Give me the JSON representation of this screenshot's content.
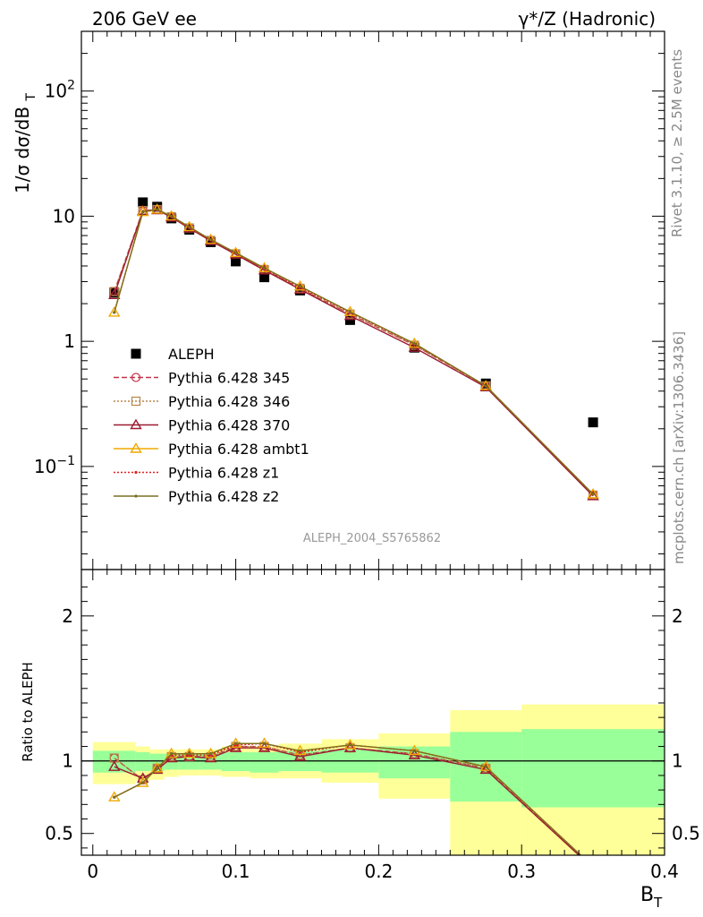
{
  "header": {
    "left": "206 GeV ee",
    "right": "γ*/Z (Hadronic)"
  },
  "side_labels": {
    "rivet": "Rivet 3.1.10, ≥ 2.5M events",
    "mcplots": "mcplots.cern.ch [arXiv:1306.3436]"
  },
  "watermark": "ALEPH_2004_S5765862",
  "chart_data": [
    {
      "type": "line",
      "panel": "main",
      "ylabel": "1/σ  dσ/dB_T",
      "yscale": "log",
      "ylim": [
        0.015,
        300
      ],
      "xlim": [
        -0.008,
        0.4
      ],
      "yticklabels": [
        "10^-1",
        "1",
        "10",
        "10^2"
      ],
      "grid": false,
      "legend_position": "middle-left",
      "x": [
        0.015,
        0.035,
        0.045,
        0.055,
        0.0675,
        0.0825,
        0.1,
        0.12,
        0.145,
        0.18,
        0.225,
        0.275,
        0.35
      ],
      "series": [
        {
          "name": "ALEPH",
          "style": "data",
          "color": "#000000",
          "values": [
            2.45,
            12.9,
            11.9,
            9.6,
            7.8,
            6.2,
            4.35,
            3.25,
            2.55,
            1.48,
            0.89,
            0.46,
            0.225
          ]
        },
        {
          "name": "Pythia 6.428 345",
          "color": "#c2344a",
          "marker": "circle",
          "dash": "6,3",
          "values": [
            2.5,
            11.1,
            11.3,
            9.9,
            8.05,
            6.4,
            5.0,
            3.75,
            2.65,
            1.65,
            0.93,
            0.44,
            0.059
          ]
        },
        {
          "name": "Pythia 6.428 346",
          "color": "#b8864b",
          "marker": "square",
          "dash": "2,2",
          "values": [
            2.5,
            11.1,
            11.3,
            9.9,
            8.05,
            6.4,
            5.0,
            3.75,
            2.65,
            1.65,
            0.93,
            0.44,
            0.059
          ]
        },
        {
          "name": "Pythia 6.428 370",
          "color": "#9b1b30",
          "marker": "triangle",
          "dash": "",
          "values": [
            2.35,
            11.0,
            11.2,
            9.8,
            8.0,
            6.35,
            4.95,
            3.7,
            2.6,
            1.6,
            0.89,
            0.43,
            0.058
          ]
        },
        {
          "name": "Pythia 6.428 ambt1",
          "color": "#f0a800",
          "marker": "triangle",
          "dash": "",
          "values": [
            1.7,
            10.8,
            11.3,
            10.0,
            8.2,
            6.5,
            5.1,
            3.85,
            2.75,
            1.72,
            0.96,
            0.44,
            0.06
          ]
        },
        {
          "name": "Pythia 6.428 z1",
          "color": "#e02020",
          "marker": "dot",
          "dash": "2,2",
          "values": [
            1.7,
            10.8,
            11.2,
            9.9,
            8.1,
            6.45,
            5.05,
            3.8,
            2.7,
            1.7,
            0.95,
            0.44,
            0.06
          ]
        },
        {
          "name": "Pythia 6.428 z2",
          "color": "#7a7020",
          "marker": "dot",
          "dash": "",
          "values": [
            1.7,
            10.8,
            11.3,
            10.0,
            8.2,
            6.5,
            5.1,
            3.85,
            2.75,
            1.72,
            0.96,
            0.44,
            0.06
          ]
        }
      ]
    },
    {
      "type": "line",
      "panel": "ratio",
      "ylabel": "Ratio to ALEPH",
      "xlabel": "B_T",
      "xlim": [
        -0.008,
        0.4
      ],
      "ylim": [
        0.35,
        2.32
      ],
      "xticklabels": [
        "0",
        "0.1",
        "0.2",
        "0.3",
        "0.4"
      ],
      "yticklabels": [
        "0.5",
        "1",
        "2"
      ],
      "bands": {
        "edges": [
          0.0,
          0.03,
          0.04,
          0.05,
          0.06,
          0.075,
          0.09,
          0.11,
          0.13,
          0.16,
          0.2,
          0.25,
          0.3,
          0.4
        ],
        "yellow_low": [
          0.84,
          0.86,
          0.87,
          0.89,
          0.9,
          0.9,
          0.89,
          0.88,
          0.88,
          0.85,
          0.74,
          0.35,
          0.35
        ],
        "yellow_high": [
          1.13,
          1.1,
          1.08,
          1.08,
          1.08,
          1.08,
          1.1,
          1.1,
          1.12,
          1.15,
          1.19,
          1.35,
          1.39
        ],
        "green_low": [
          0.92,
          0.93,
          0.93,
          0.94,
          0.94,
          0.94,
          0.93,
          0.92,
          0.93,
          0.92,
          0.88,
          0.72,
          0.68
        ],
        "green_high": [
          1.07,
          1.06,
          1.05,
          1.05,
          1.05,
          1.05,
          1.06,
          1.06,
          1.07,
          1.08,
          1.1,
          1.2,
          1.22
        ]
      },
      "series": [
        {
          "name": "Pythia 6.428 345",
          "values": [
            1.02,
            0.87,
            0.95,
            1.03,
            1.03,
            1.03,
            1.1,
            1.1,
            1.04,
            1.09,
            1.05,
            0.95,
            0.26
          ]
        },
        {
          "name": "Pythia 6.428 346",
          "values": [
            1.02,
            0.87,
            0.95,
            1.03,
            1.03,
            1.03,
            1.1,
            1.1,
            1.04,
            1.09,
            1.05,
            0.95,
            0.26
          ]
        },
        {
          "name": "Pythia 6.428 370",
          "values": [
            0.96,
            0.88,
            0.94,
            1.02,
            1.03,
            1.02,
            1.09,
            1.09,
            1.03,
            1.09,
            1.04,
            0.94,
            0.26
          ]
        },
        {
          "name": "Pythia 6.428 ambt1",
          "values": [
            0.75,
            0.85,
            0.95,
            1.05,
            1.05,
            1.05,
            1.12,
            1.12,
            1.07,
            1.11,
            1.07,
            0.96,
            0.27
          ]
        },
        {
          "name": "Pythia 6.428 z1",
          "values": [
            0.75,
            0.85,
            0.95,
            1.04,
            1.04,
            1.04,
            1.11,
            1.12,
            1.06,
            1.11,
            1.07,
            0.96,
            0.27
          ]
        },
        {
          "name": "Pythia 6.428 z2",
          "values": [
            0.75,
            0.85,
            0.95,
            1.05,
            1.05,
            1.05,
            1.12,
            1.12,
            1.07,
            1.11,
            1.07,
            0.96,
            0.27
          ]
        }
      ]
    }
  ]
}
